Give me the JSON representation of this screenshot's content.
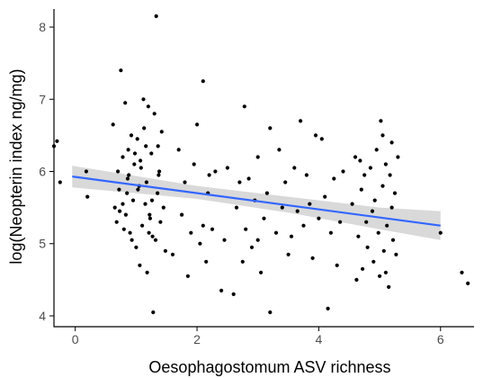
{
  "chart_data": {
    "type": "scatter",
    "xlabel": "Oesophagostomum ASV richness",
    "ylabel": "log(Neopterin index ng/mg)",
    "xlim": [
      -0.35,
      6.55
    ],
    "ylim": [
      3.85,
      8.25
    ],
    "xticks": [
      0,
      2,
      4,
      6
    ],
    "yticks": [
      4,
      5,
      6,
      7,
      8
    ],
    "grid": false,
    "legend": "none",
    "colors": {
      "points": "#000000",
      "fit_line": "#3366ff",
      "confidence_band": "#cccccc",
      "axis": "#000000"
    },
    "fit": {
      "x_range": [
        -0.05,
        6.0
      ],
      "line": [
        [
          -0.05,
          5.93
        ],
        [
          6.0,
          5.25
        ]
      ],
      "ci_upper": [
        [
          -0.05,
          6.08
        ],
        [
          2.0,
          5.8
        ],
        [
          3.5,
          5.65
        ],
        [
          5.0,
          5.5
        ],
        [
          6.0,
          5.45
        ]
      ],
      "ci_lower": [
        [
          -0.05,
          5.78
        ],
        [
          2.0,
          5.62
        ],
        [
          3.5,
          5.43
        ],
        [
          5.0,
          5.2
        ],
        [
          6.0,
          5.05
        ]
      ]
    },
    "series": [
      {
        "points": [
          [
            -0.35,
            6.35
          ],
          [
            -0.3,
            6.42
          ],
          [
            -0.25,
            5.85
          ],
          [
            0.2,
            5.65
          ],
          [
            0.18,
            6.0
          ],
          [
            0.62,
            6.65
          ],
          [
            0.65,
            5.5
          ],
          [
            0.68,
            5.3
          ],
          [
            0.7,
            6.0
          ],
          [
            0.72,
            5.75
          ],
          [
            0.73,
            5.45
          ],
          [
            0.75,
            7.4
          ],
          [
            0.78,
            6.2
          ],
          [
            0.8,
            5.2
          ],
          [
            0.82,
            6.95
          ],
          [
            0.85,
            5.7
          ],
          [
            0.87,
            6.3
          ],
          [
            0.88,
            5.95
          ],
          [
            0.9,
            5.15
          ],
          [
            0.92,
            6.5
          ],
          [
            0.95,
            5.6
          ],
          [
            0.97,
            6.1
          ],
          [
            1.0,
            4.95
          ],
          [
            1.02,
            6.45
          ],
          [
            1.05,
            5.8
          ],
          [
            1.07,
            6.15
          ],
          [
            1.08,
            6.05
          ],
          [
            1.1,
            5.25
          ],
          [
            1.12,
            7.0
          ],
          [
            1.13,
            6.6
          ],
          [
            1.15,
            5.55
          ],
          [
            1.17,
            5.85
          ],
          [
            1.18,
            4.6
          ],
          [
            1.2,
            6.9
          ],
          [
            1.22,
            5.4
          ],
          [
            1.23,
            5.35
          ],
          [
            1.25,
            6.25
          ],
          [
            1.27,
            5.1
          ],
          [
            1.28,
            4.05
          ],
          [
            1.3,
            6.8
          ],
          [
            1.32,
            5.05
          ],
          [
            1.33,
            8.15
          ],
          [
            1.35,
            5.7
          ],
          [
            1.37,
            5.95
          ],
          [
            1.38,
            6.0
          ],
          [
            1.4,
            5.3
          ],
          [
            1.42,
            6.55
          ],
          [
            1.45,
            5.5
          ],
          [
            1.48,
            4.9
          ],
          [
            0.78,
            5.55
          ],
          [
            0.83,
            5.4
          ],
          [
            0.86,
            5.9
          ],
          [
            0.93,
            5.05
          ],
          [
            0.98,
            6.25
          ],
          [
            1.03,
            5.75
          ],
          [
            1.06,
            4.7
          ],
          [
            1.16,
            6.35
          ],
          [
            1.21,
            5.15
          ],
          [
            1.26,
            5.6
          ],
          [
            1.36,
            6.35
          ],
          [
            1.6,
            4.85
          ],
          [
            1.7,
            6.3
          ],
          [
            1.75,
            5.4
          ],
          [
            1.8,
            5.85
          ],
          [
            1.85,
            4.55
          ],
          [
            1.9,
            5.15
          ],
          [
            1.95,
            6.1
          ],
          [
            2.0,
            6.65
          ],
          [
            2.05,
            5.0
          ],
          [
            2.1,
            7.25
          ],
          [
            2.1,
            5.25
          ],
          [
            2.15,
            4.75
          ],
          [
            2.18,
            5.7
          ],
          [
            2.2,
            5.95
          ],
          [
            2.25,
            5.2
          ],
          [
            2.3,
            6.0
          ],
          [
            2.4,
            4.35
          ],
          [
            2.45,
            5.05
          ],
          [
            2.5,
            6.05
          ],
          [
            2.6,
            4.3
          ],
          [
            2.65,
            5.5
          ],
          [
            2.7,
            5.85
          ],
          [
            2.75,
            4.75
          ],
          [
            2.78,
            6.9
          ],
          [
            2.8,
            5.2
          ],
          [
            2.85,
            5.9
          ],
          [
            2.9,
            4.95
          ],
          [
            2.95,
            5.6
          ],
          [
            3.0,
            6.2
          ],
          [
            3.0,
            5.05
          ],
          [
            3.05,
            4.6
          ],
          [
            3.1,
            5.35
          ],
          [
            3.15,
            5.7
          ],
          [
            3.2,
            6.6
          ],
          [
            3.2,
            4.05
          ],
          [
            3.3,
            5.15
          ],
          [
            3.35,
            6.3
          ],
          [
            3.4,
            5.5
          ],
          [
            3.45,
            5.85
          ],
          [
            3.5,
            4.85
          ],
          [
            3.55,
            5.1
          ],
          [
            3.6,
            6.05
          ],
          [
            3.65,
            5.45
          ],
          [
            3.7,
            6.7
          ],
          [
            3.75,
            5.25
          ],
          [
            3.8,
            5.95
          ],
          [
            3.85,
            5.55
          ],
          [
            3.9,
            4.8
          ],
          [
            3.95,
            6.5
          ],
          [
            4.0,
            5.35
          ],
          [
            4.05,
            6.45
          ],
          [
            4.1,
            5.65
          ],
          [
            4.15,
            4.1
          ],
          [
            4.2,
            5.15
          ],
          [
            4.25,
            5.9
          ],
          [
            4.3,
            4.7
          ],
          [
            4.35,
            5.3
          ],
          [
            4.4,
            6.0
          ],
          [
            4.55,
            5.55
          ],
          [
            4.6,
            6.2
          ],
          [
            4.62,
            4.5
          ],
          [
            4.65,
            5.1
          ],
          [
            4.68,
            6.15
          ],
          [
            4.7,
            5.75
          ],
          [
            4.72,
            4.65
          ],
          [
            4.75,
            5.95
          ],
          [
            4.78,
            5.3
          ],
          [
            4.8,
            4.95
          ],
          [
            4.85,
            6.05
          ],
          [
            4.88,
            5.45
          ],
          [
            4.9,
            4.75
          ],
          [
            4.92,
            5.6
          ],
          [
            4.95,
            6.3
          ],
          [
            4.98,
            5.15
          ],
          [
            5.0,
            4.55
          ],
          [
            5.02,
            6.7
          ],
          [
            5.05,
            5.8
          ],
          [
            5.07,
            4.9
          ],
          [
            5.1,
            6.1
          ],
          [
            5.12,
            5.25
          ],
          [
            5.15,
            4.4
          ],
          [
            5.17,
            5.95
          ],
          [
            5.2,
            6.4
          ],
          [
            5.22,
            5.05
          ],
          [
            5.25,
            5.7
          ],
          [
            5.27,
            4.85
          ],
          [
            5.3,
            6.2
          ],
          [
            5.05,
            6.5
          ],
          [
            5.1,
            4.6
          ],
          [
            5.2,
            5.5
          ],
          [
            6.0,
            5.15
          ],
          [
            6.35,
            4.6
          ],
          [
            6.45,
            4.45
          ]
        ]
      }
    ]
  }
}
